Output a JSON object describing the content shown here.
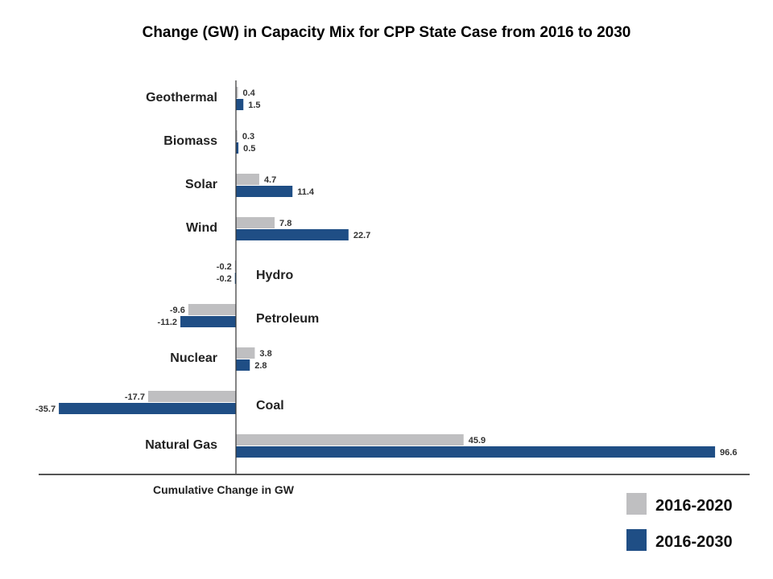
{
  "chart_data": {
    "type": "bar",
    "orientation": "horizontal",
    "title": "Change (GW) in Capacity Mix for CPP State Case from 2016 to 2030",
    "xlabel": "Cumulative Change in GW",
    "ylabel": "",
    "categories": [
      "Geothermal",
      "Biomass",
      "Solar",
      "Wind",
      "Hydro",
      "Petroleum",
      "Nuclear",
      "Coal",
      "Natural Gas"
    ],
    "series": [
      {
        "name": "2016-2020",
        "color": "#bfbfc1",
        "values": [
          0.4,
          0.3,
          4.7,
          7.8,
          -0.2,
          -9.6,
          3.8,
          -17.7,
          45.9
        ]
      },
      {
        "name": "2016-2030",
        "color": "#1f4e85",
        "values": [
          1.5,
          0.5,
          11.4,
          22.7,
          -0.2,
          -11.2,
          2.8,
          -35.7,
          96.6
        ]
      }
    ],
    "xlim": [
      -36,
      100
    ],
    "grid": false,
    "legend": "bottom-right"
  }
}
